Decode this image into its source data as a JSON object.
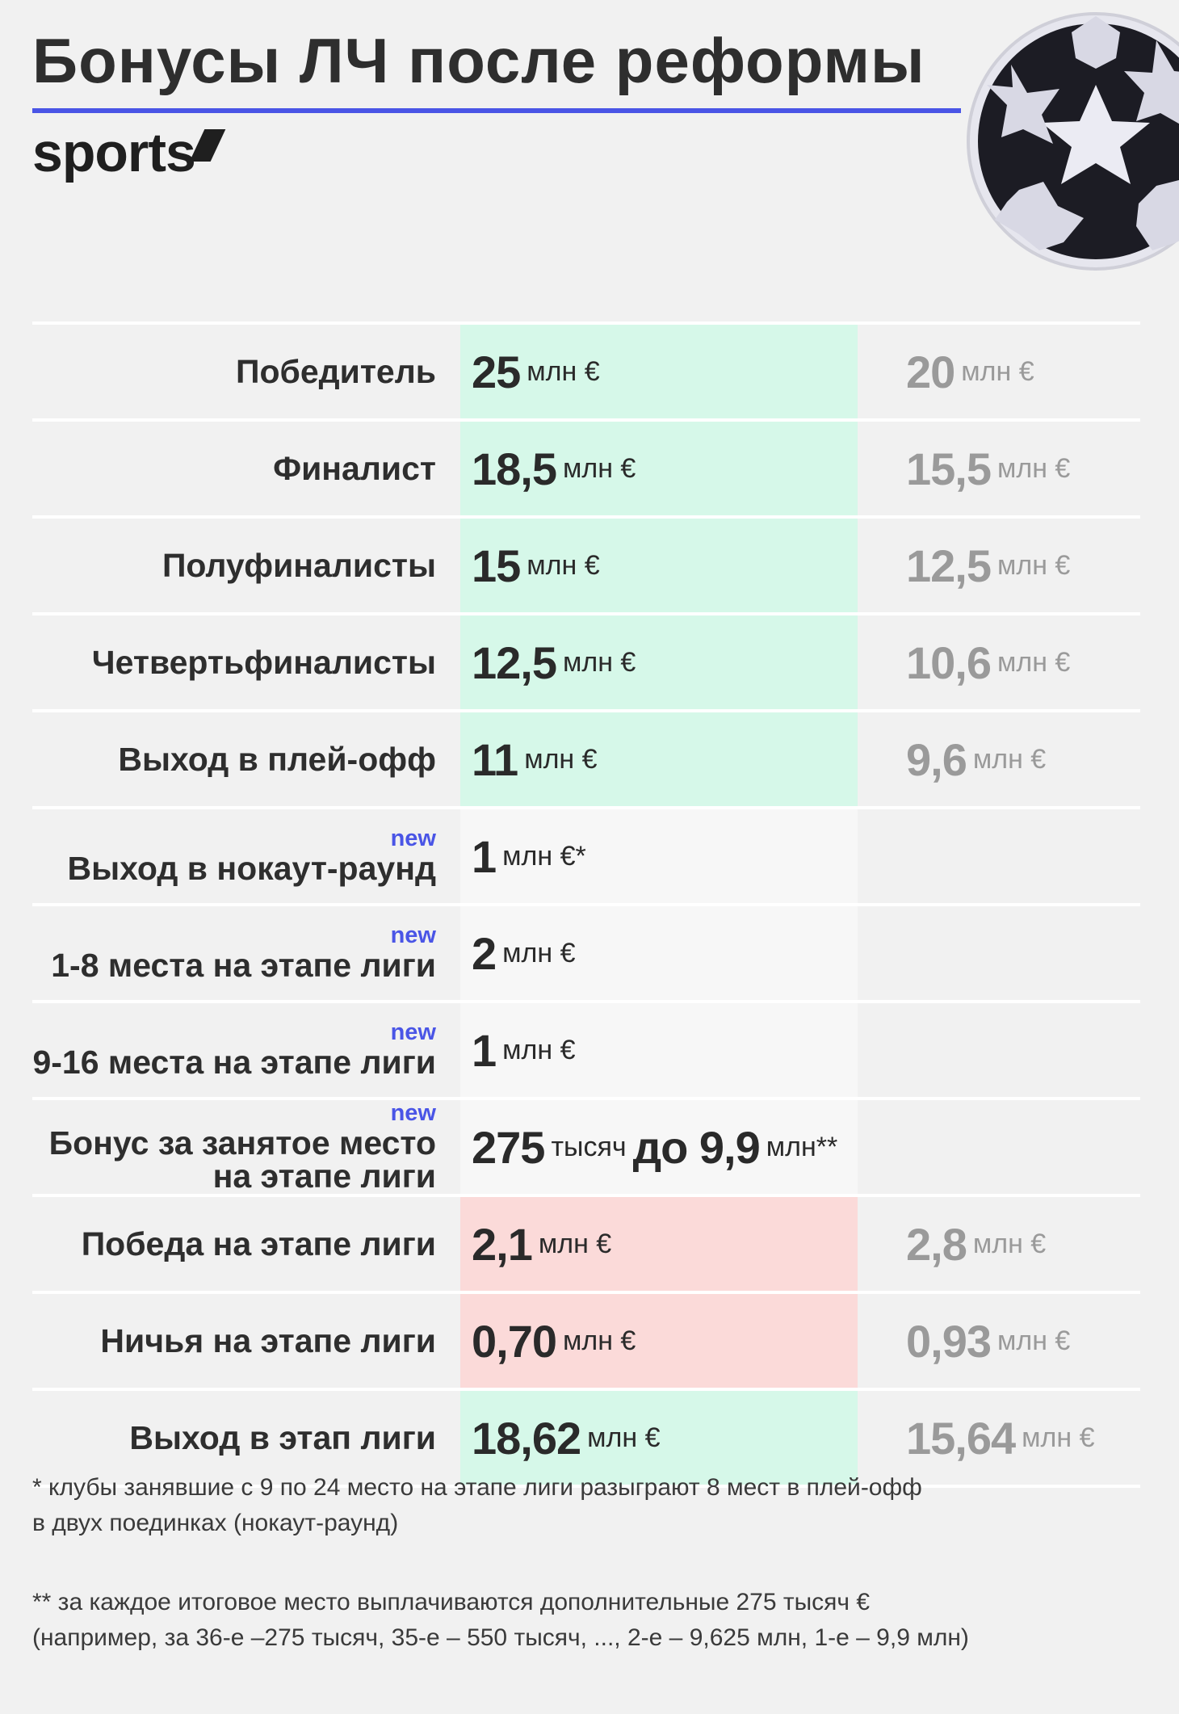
{
  "header": {
    "title": "Бонусы ЛЧ после реформы",
    "brand": "sports"
  },
  "colors": {
    "accent": "#4a55e6",
    "increase_bg": "#d6f8e9",
    "decrease_bg": "#fbdad9",
    "new_bg": "#f7f7f7"
  },
  "rows": [
    {
      "label": "Победитель",
      "new": "",
      "value": "25",
      "unit": "млн €",
      "old_value": "20",
      "old_unit": "млн €"
    },
    {
      "label": "Финалист",
      "new": "",
      "value": "18,5",
      "unit": "млн €",
      "old_value": "15,5",
      "old_unit": "млн €"
    },
    {
      "label": "Полуфиналисты",
      "new": "",
      "value": "15",
      "unit": "млн €",
      "old_value": "12,5",
      "old_unit": "млн €"
    },
    {
      "label": "Четвертьфиналисты",
      "new": "",
      "value": "12,5",
      "unit": "млн €",
      "old_value": "10,6",
      "old_unit": "млн €"
    },
    {
      "label": "Выход в плей-офф",
      "new": "",
      "value": "11",
      "unit": "млн €",
      "old_value": "9,6",
      "old_unit": "млн €"
    },
    {
      "label": "Выход в нокаут-раунд",
      "new": "new",
      "value": "1",
      "unit": "млн €*",
      "old_value": "",
      "old_unit": ""
    },
    {
      "label": "1-8 места на этапе лиги",
      "new": "new",
      "value": "2",
      "unit": "млн €",
      "old_value": "",
      "old_unit": ""
    },
    {
      "label": "9-16 места на этапе лиги",
      "new": "new",
      "value": "1",
      "unit": "млн €",
      "old_value": "",
      "old_unit": ""
    },
    {
      "label": "Бонус за занятое место",
      "label2": "на этапе лиги",
      "new": "new",
      "value": "275",
      "unit": "тысяч",
      "value2": "до 9,9",
      "unit2": "млн**",
      "old_value": "",
      "old_unit": ""
    },
    {
      "label": "Победа на этапе лиги",
      "new": "",
      "value": "2,1",
      "unit": "млн €",
      "old_value": "2,8",
      "old_unit": "млн €"
    },
    {
      "label": "Ничья на этапе лиги",
      "new": "",
      "value": "0,70",
      "unit": "млн €",
      "old_value": "0,93",
      "old_unit": "млн €"
    },
    {
      "label": "Выход в этап лиги",
      "new": "",
      "value": "18,62",
      "unit": "млн €",
      "old_value": "15,64",
      "old_unit": "млн €"
    }
  ],
  "footnotes": {
    "note1_line1": "* клубы занявшие с 9 по 24 место на этапе лиги разыграют 8 мест в плей-офф",
    "note1_line2": "в двух поединках (нокаут-раунд)",
    "note2_line1": "** за каждое итоговое место выплачиваются дополнительные 275 тысяч €",
    "note2_line2": "(например, за 36-е –275 тысяч, 35-е – 550 тысяч, ..., 2-е – 9,625 млн, 1-е – 9,9 млн)"
  }
}
